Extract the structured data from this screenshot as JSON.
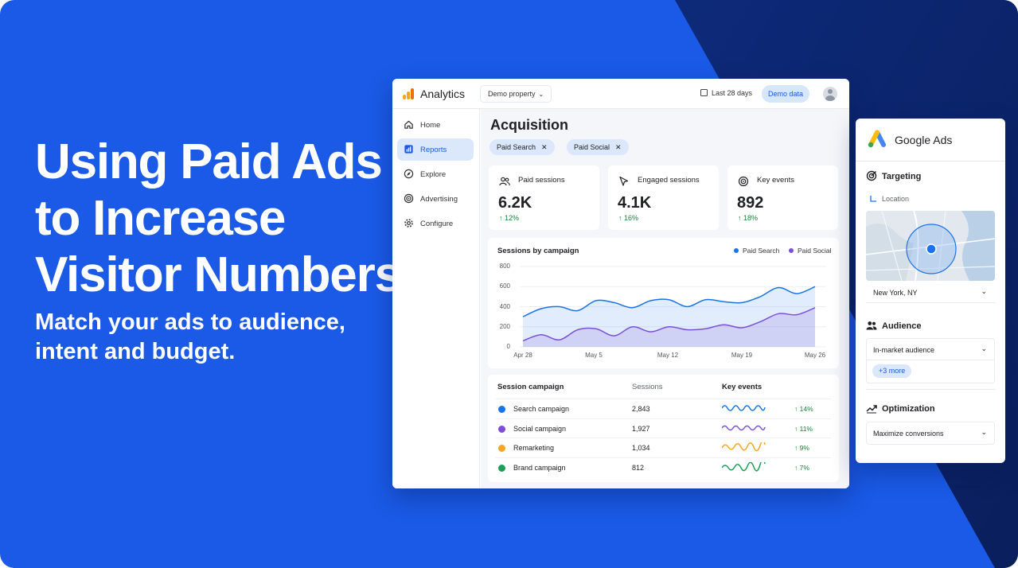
{
  "hero": {
    "headline_lines": [
      "Using Paid Ads",
      "to Increase",
      "Visitor Numbers"
    ],
    "subline_lines": [
      "Match your ads to audience,",
      "intent and budget."
    ],
    "colors": {
      "background": "#1a5ae6",
      "dark_corner": "#0d2a7a",
      "deep_navy": "#0a1f5c"
    }
  },
  "analytics": {
    "app_name": "Analytics",
    "property_selector": "Demo property",
    "date_range": "Last 28 days",
    "demo_badge": "Demo data",
    "nav": [
      {
        "label": "Home",
        "icon": "home-icon"
      },
      {
        "label": "Reports",
        "icon": "bar-chart-icon",
        "active": true
      },
      {
        "label": "Explore",
        "icon": "compass-icon"
      },
      {
        "label": "Advertising",
        "icon": "target-icon"
      },
      {
        "label": "Configure",
        "icon": "gear-icon"
      }
    ],
    "page_title": "Acquisition",
    "filters": [
      "Paid Search",
      "Paid Social"
    ],
    "kpis": [
      {
        "label": "Paid sessions",
        "value": "6.2K",
        "change": "↑ 12%",
        "icon": "users-icon"
      },
      {
        "label": "Engaged sessions",
        "value": "4.1K",
        "change": "↑ 16%",
        "icon": "cursor-icon"
      },
      {
        "label": "Key events",
        "value": "892",
        "change": "↑ 18%",
        "icon": "target-icon"
      }
    ],
    "table": {
      "headers": [
        "Session campaign",
        "Sessions",
        "Key events"
      ],
      "rows": [
        {
          "name": "Search campaign",
          "sessions": "2,843",
          "change": "↑ 14%",
          "color": "#1a73e8"
        },
        {
          "name": "Social campaign",
          "sessions": "1,927",
          "change": "↑ 11%",
          "color": "#7b4fd6"
        },
        {
          "name": "Remarketing",
          "sessions": "1,034",
          "change": "↑ 9%",
          "color": "#f5a623"
        },
        {
          "name": "Brand campaign",
          "sessions": "812",
          "change": "↑ 7%",
          "color": "#1e9e58"
        }
      ]
    }
  },
  "chart_data": {
    "type": "area",
    "title": "Sessions by campaign",
    "x_ticks": [
      "Apr 28",
      "May 5",
      "May 12",
      "May 19",
      "May 26"
    ],
    "y_ticks": [
      "800",
      "600",
      "400",
      "200",
      "0"
    ],
    "ylim": [
      0,
      800
    ],
    "grid": true,
    "legend_position": "top-right",
    "series": [
      {
        "name": "Paid Search",
        "color": "#1a73e8",
        "values": [
          300,
          380,
          400,
          360,
          460,
          440,
          390,
          460,
          470,
          400,
          470,
          450,
          440,
          500,
          590,
          530,
          600
        ]
      },
      {
        "name": "Paid Social",
        "color": "#7b4fd6",
        "values": [
          60,
          120,
          70,
          170,
          180,
          110,
          200,
          150,
          200,
          170,
          180,
          220,
          190,
          250,
          330,
          320,
          390
        ]
      }
    ]
  },
  "google_ads": {
    "title": "Google Ads",
    "targeting": {
      "label": "Targeting",
      "sub_label": "Location",
      "location": "New York, NY"
    },
    "audience": {
      "label": "Audience",
      "value": "In-market audience",
      "more": "+3 more"
    },
    "optimization": {
      "label": "Optimization",
      "value": "Maximize conversions"
    }
  }
}
